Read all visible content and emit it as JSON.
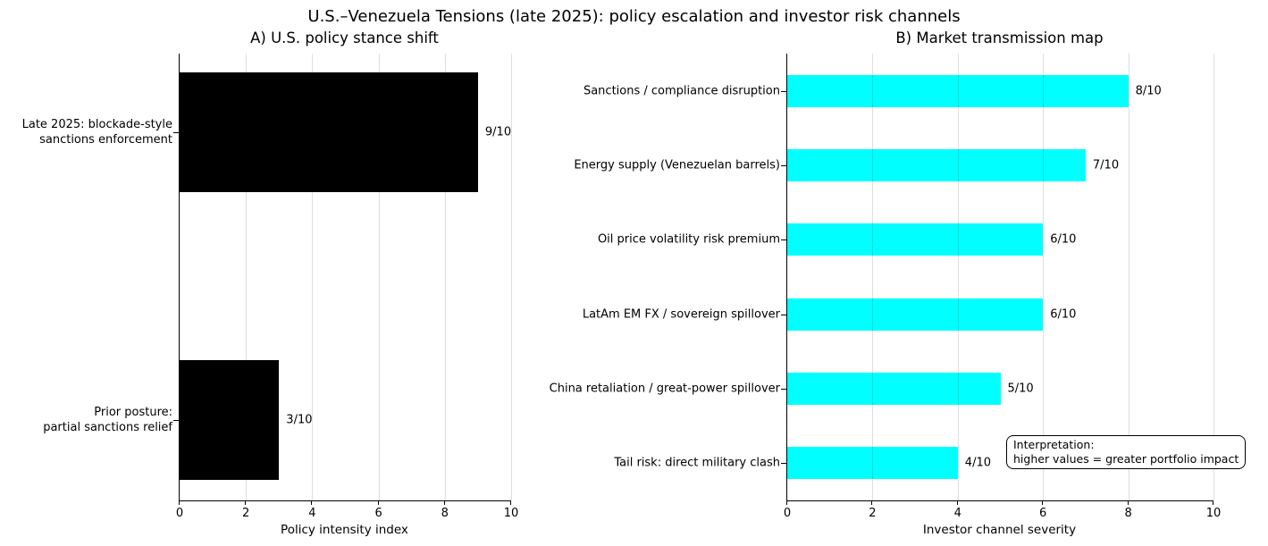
{
  "figure": {
    "title": "U.S.–Venezuela Tensions (late 2025): policy escalation and investor risk channels",
    "background": "#ffffff"
  },
  "chart_data": [
    {
      "type": "bar",
      "orientation": "horizontal",
      "title": "A) U.S. policy stance shift",
      "categories": [
        "Late 2025: blockade-style\nsanctions enforcement",
        "Prior posture:\npartial sanctions relief"
      ],
      "values": [
        9,
        3
      ],
      "value_labels": [
        "9/10",
        "3/10"
      ],
      "xlabel": "Policy intensity index",
      "xlim": [
        0,
        10
      ],
      "xticks": [
        0,
        2,
        4,
        6,
        8,
        10
      ],
      "bar_color": "#000000",
      "grid": true,
      "legend": false
    },
    {
      "type": "bar",
      "orientation": "horizontal",
      "title": "B) Market transmission map",
      "categories": [
        "Sanctions / compliance disruption",
        "Energy supply (Venezuelan barrels)",
        "Oil price volatility risk premium",
        "LatAm EM FX / sovereign spillover",
        "China retaliation / great-power spillover",
        "Tail risk: direct military clash"
      ],
      "values": [
        8,
        7,
        6,
        6,
        5,
        4
      ],
      "value_labels": [
        "8/10",
        "7/10",
        "6/10",
        "6/10",
        "5/10",
        "4/10"
      ],
      "xlabel": "Investor channel severity",
      "xlim": [
        0,
        10
      ],
      "xticks": [
        0,
        2,
        4,
        6,
        8,
        10
      ],
      "bar_color": "#00ffff",
      "grid": true,
      "legend": false,
      "annotation": "Interpretation:\nhigher values = greater portfolio impact"
    }
  ]
}
